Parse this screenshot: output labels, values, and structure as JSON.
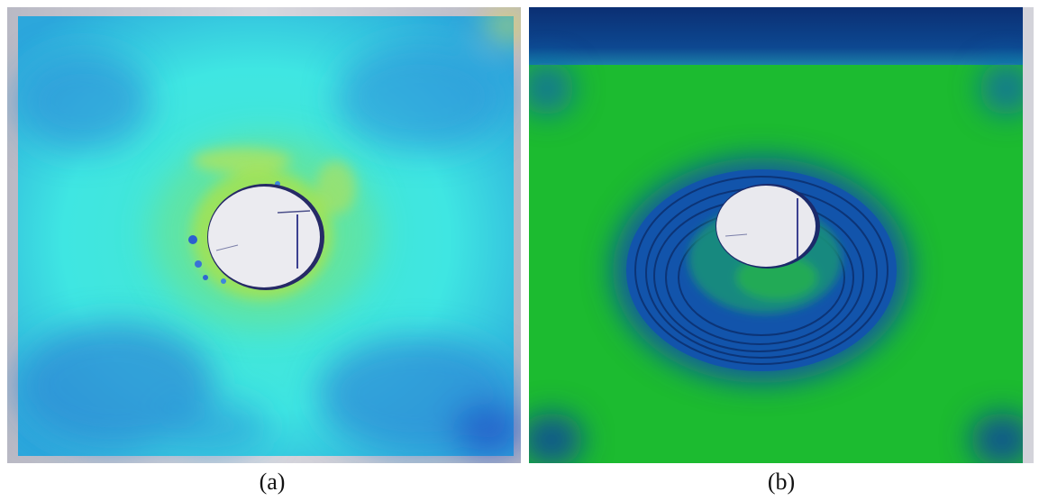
{
  "figure": {
    "panels": [
      {
        "id": "a",
        "caption": "(a)",
        "colors": {
          "background": "#38e4e2",
          "outer_region": "#2ea6dc",
          "ring": "#8fe05b",
          "hole": "#e9e9ee"
        }
      },
      {
        "id": "b",
        "caption": "(b)",
        "colors": {
          "background": "#1bbb2f",
          "top_band": "#0b3f86",
          "ring": "#1650a5",
          "hole": "#e7e7ec"
        }
      }
    ]
  }
}
